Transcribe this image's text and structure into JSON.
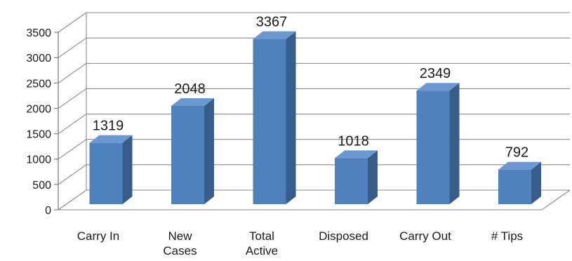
{
  "chart_data": {
    "type": "bar",
    "categories": [
      "Carry In",
      "New Cases",
      "Total Active",
      "Disposed",
      "Carry Out",
      "# Tips"
    ],
    "category_lines": [
      [
        "Carry In"
      ],
      [
        "New",
        "Cases"
      ],
      [
        "Total",
        "Active"
      ],
      [
        "Disposed"
      ],
      [
        "Carry Out"
      ],
      [
        "# Tips"
      ]
    ],
    "values": [
      1319,
      2048,
      3367,
      1018,
      2349,
      792
    ],
    "data_labels": [
      "1319",
      "2048",
      "3367",
      "1018",
      "2349",
      "792"
    ],
    "y_ticks": [
      0,
      500,
      1000,
      1500,
      2000,
      2500,
      3000,
      3500
    ],
    "ylim": [
      0,
      3500
    ],
    "title": "",
    "xlabel": "",
    "ylabel": "",
    "grid": true,
    "style": "3d-column",
    "colors": {
      "bar_front": "#4f81bd",
      "bar_side": "#385d8a",
      "bar_top": "#6d97cf",
      "grid": "#8a8a8a",
      "axis": "#7f7f7f"
    }
  }
}
